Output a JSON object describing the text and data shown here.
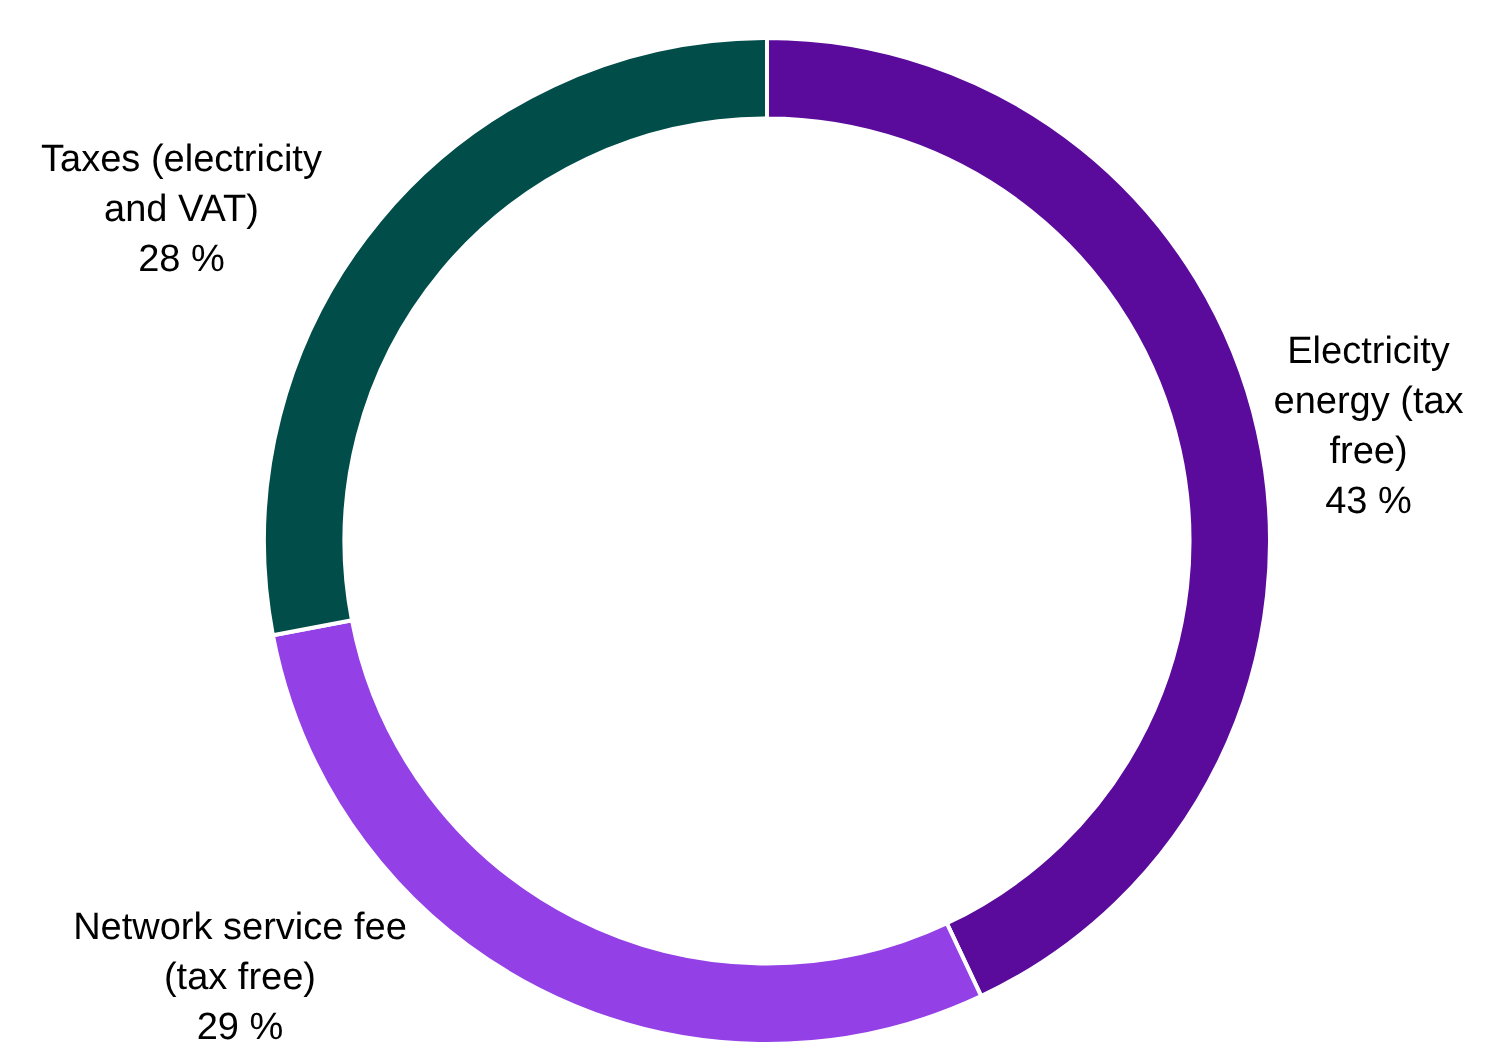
{
  "chart_data": {
    "type": "donut",
    "categories": [
      "Electricity energy (tax free)",
      "Network service fee (tax free)",
      "Taxes (electricity and VAT)"
    ],
    "values": [
      43,
      29,
      28
    ],
    "colors": [
      "#5a0b9b",
      "#9340e6",
      "#004d4a"
    ],
    "value_labels": [
      "43 %",
      "29 %",
      "28 %"
    ],
    "legend": false
  }
}
